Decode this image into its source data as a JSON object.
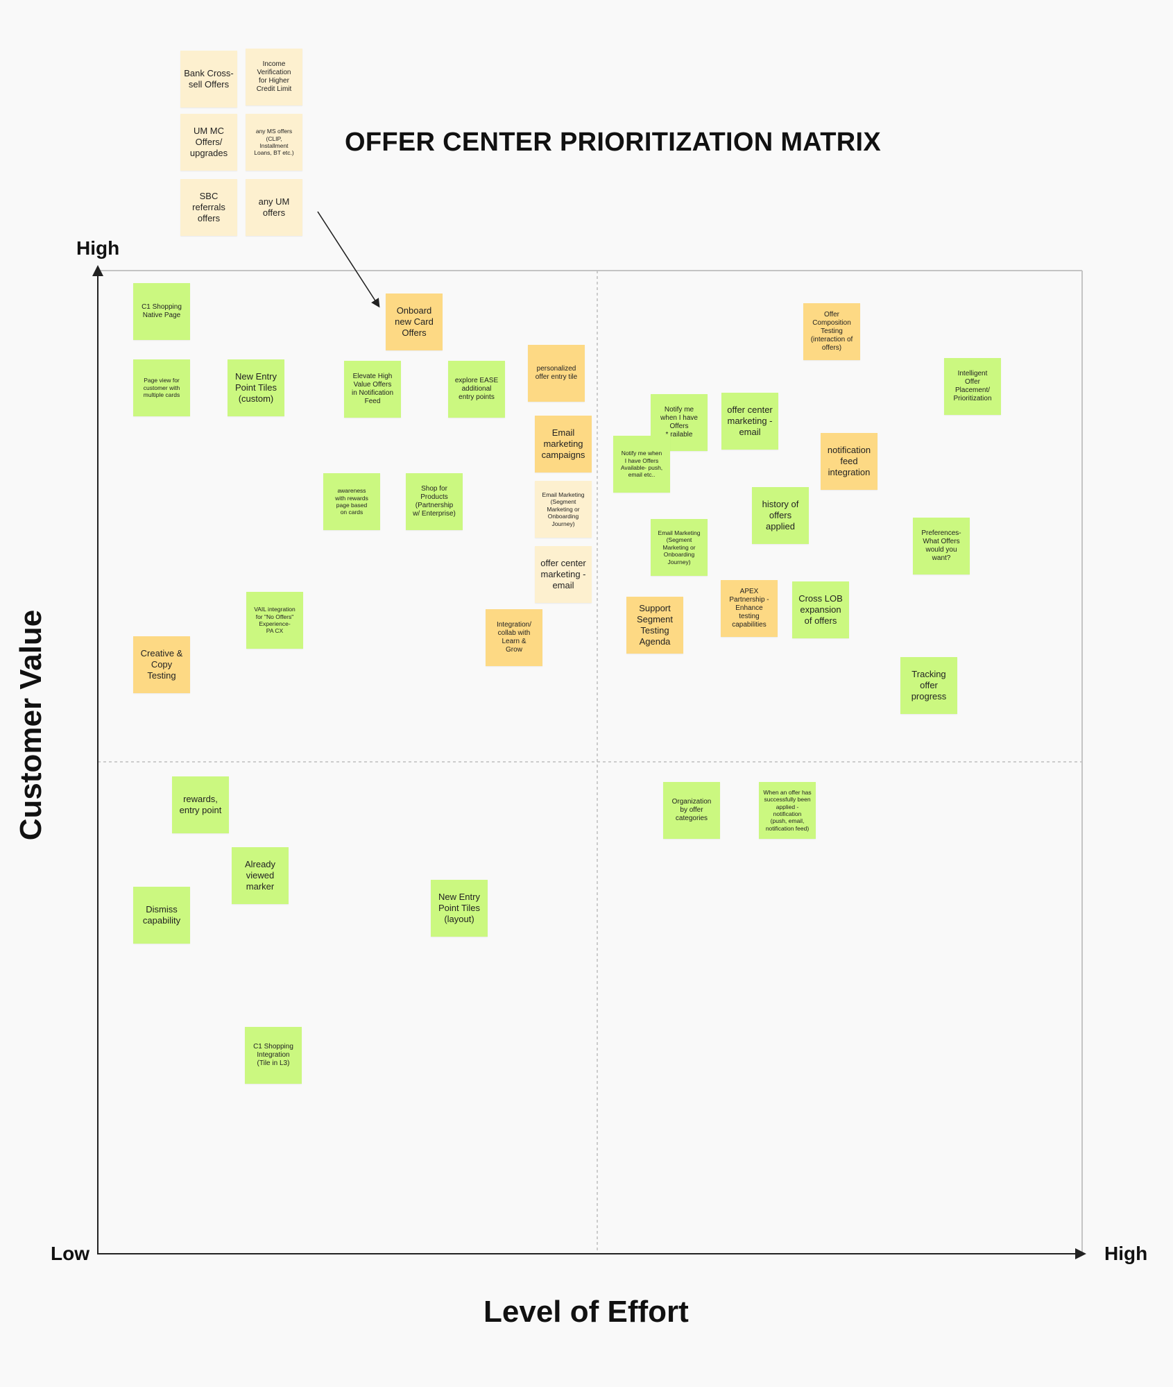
{
  "title": "OFFER CENTER PRIORITIZATION MATRIX",
  "axes": {
    "y_title": "Customer Value",
    "y_high": "High",
    "x_title": "Level of Effort",
    "x_low": "Low",
    "x_high": "High"
  },
  "colors": {
    "green": "#cbf880",
    "orange": "#fdd984",
    "cream": "#fdf0cf",
    "axis": "#222222",
    "grid": "#bdbdbd"
  },
  "group_notes": [
    {
      "text": "Bank Cross-\nsell Offers",
      "color": "cream"
    },
    {
      "text": "Income\nVerification\nfor Higher\nCredit Limit",
      "color": "cream"
    },
    {
      "text": "UM MC\nOffers/\nupgrades",
      "color": "cream"
    },
    {
      "text": "any MS offers\n(CLIP,\nInstallment\nLoans, BT etc.)",
      "color": "cream"
    },
    {
      "text": "SBC\nreferrals\noffers",
      "color": "cream"
    },
    {
      "text": "any UM\noffers",
      "color": "cream"
    }
  ],
  "matrix_notes": [
    {
      "text": "C1 Shopping\nNative Page",
      "color": "green"
    },
    {
      "text": "Onboard\nnew Card\nOffers",
      "color": "orange"
    },
    {
      "text": "Offer\nComposition\nTesting\n(interaction of\noffers)",
      "color": "orange"
    },
    {
      "text": "Page view for\ncustomer with\nmultiple cards",
      "color": "green"
    },
    {
      "text": "New Entry\nPoint Tiles\n(custom)",
      "color": "green"
    },
    {
      "text": "Elevate High\nValue Offers\nin Notification\nFeed",
      "color": "green"
    },
    {
      "text": "explore EASE\nadditional\nentry points",
      "color": "green"
    },
    {
      "text": "personalized\noffer entry tile",
      "color": "orange"
    },
    {
      "text": "Intelligent\nOffer\nPlacement/\nPrioritization",
      "color": "green"
    },
    {
      "text": "Notify me\nwhen I have\nOffers\n* railable",
      "color": "green"
    },
    {
      "text": "offer center\nmarketing -\nemail",
      "color": "green"
    },
    {
      "text": "Email\nmarketing\ncampaigns",
      "color": "orange"
    },
    {
      "text": "Notify me when\nI have Offers\nAvailable- push,\nemail etc..",
      "color": "green"
    },
    {
      "text": "notification\nfeed\nintegration",
      "color": "orange"
    },
    {
      "text": "awareness\nwith rewards\npage based\non cards",
      "color": "green"
    },
    {
      "text": "Shop for\nProducts\n(Partnership\nw/ Enterprise)",
      "color": "green"
    },
    {
      "text": "Email Marketing\n(Segment\nMarketing or\nOnboarding\nJourney)",
      "color": "cream"
    },
    {
      "text": "history of\noffers\napplied",
      "color": "green"
    },
    {
      "text": "Email Marketing\n(Segment\nMarketing or\nOnboarding\nJourney)",
      "color": "green"
    },
    {
      "text": "Preferences-\nWhat Offers\nwould you\nwant?",
      "color": "green"
    },
    {
      "text": "offer center\nmarketing -\nemail",
      "color": "cream"
    },
    {
      "text": "VAIL integration\nfor \"No Offers\"\nExperience-\nPA CX",
      "color": "green"
    },
    {
      "text": "Integration/\ncollab with\nLearn &\nGrow",
      "color": "orange"
    },
    {
      "text": "Support\nSegment\nTesting\nAgenda",
      "color": "orange"
    },
    {
      "text": "APEX\nPartnership -\nEnhance\ntesting\ncapabilities",
      "color": "orange"
    },
    {
      "text": "Cross LOB\nexpansion\nof offers",
      "color": "green"
    },
    {
      "text": "Creative &\nCopy\nTesting",
      "color": "orange"
    },
    {
      "text": "Tracking\noffer\nprogress",
      "color": "green"
    },
    {
      "text": "rewards,\nentry point",
      "color": "green"
    },
    {
      "text": "Organization\nby offer\ncategories",
      "color": "green"
    },
    {
      "text": "When an offer has\nsuccessfully been\napplied -\nnotification\n(push, email,\nnotification feed)",
      "color": "green"
    },
    {
      "text": "Already\nviewed\nmarker",
      "color": "green"
    },
    {
      "text": "Dismiss\ncapability",
      "color": "green"
    },
    {
      "text": "New Entry\nPoint Tiles\n(layout)",
      "color": "green"
    },
    {
      "text": "C1 Shopping\nIntegration\n(Tile in L3)",
      "color": "green"
    }
  ]
}
